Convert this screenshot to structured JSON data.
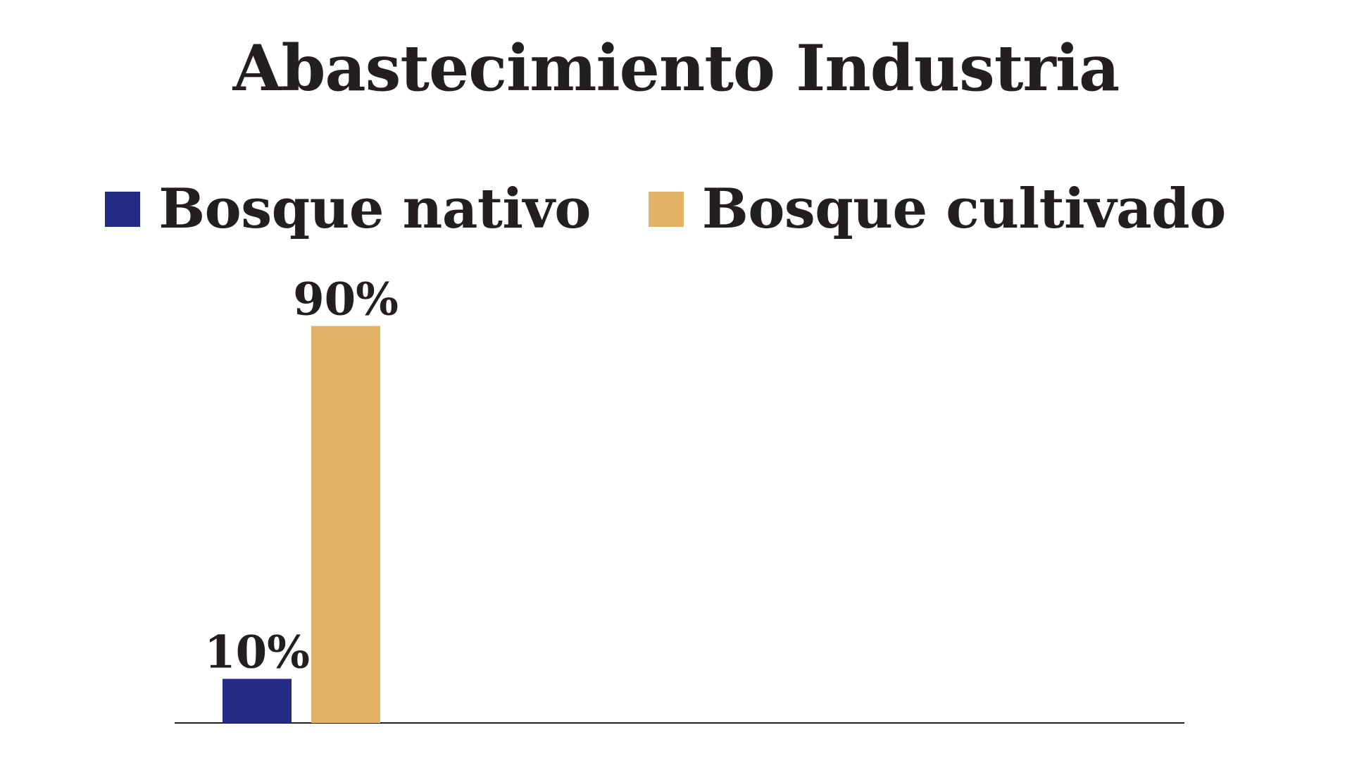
{
  "chart_data": {
    "type": "bar",
    "title": "Abastecimiento Industria",
    "categories": [
      ""
    ],
    "series": [
      {
        "name": "Bosque nativo",
        "values": [
          10
        ],
        "color": "#252a84",
        "value_label": "10%"
      },
      {
        "name": "Bosque cultivado",
        "values": [
          90
        ],
        "color": "#e2b467",
        "value_label": "90%"
      }
    ],
    "unit": "%",
    "ylim": [
      0,
      100
    ],
    "grid": false,
    "legend_placement": "top-center",
    "xlabel": "",
    "ylabel": ""
  }
}
